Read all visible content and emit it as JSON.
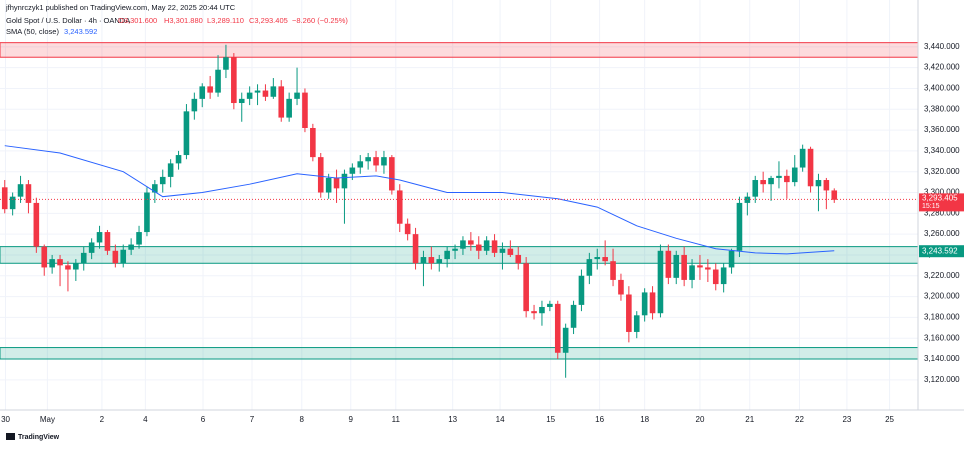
{
  "header": {
    "publisher": "jfhynrczyk1 published on TradingView.com, May 22, 2025 20:44 UTC",
    "symbol": "Gold Spot / U.S. Dollar · 4h · OANDA",
    "open": "O3,301.600",
    "high": "H3,301.880",
    "low": "L3,289.110",
    "close": "C3,293.405",
    "change": "−8.260 (−0.25%)",
    "indicator": "SMA (50, close)",
    "indicator_value": "3,243.592"
  },
  "footer": {
    "brand": "TradingView"
  },
  "chart_data": {
    "type": "candlestick",
    "colors": {
      "up": "#089981",
      "down": "#f23645"
    },
    "xlim": [
      -0.6,
      115.6
    ],
    "xticks": [
      {
        "value": 0.1,
        "label": "30"
      },
      {
        "value": 5.4,
        "label": "May"
      },
      {
        "value": 12.3,
        "label": "2"
      },
      {
        "value": 17.8,
        "label": "4"
      },
      {
        "value": 25.1,
        "label": "6"
      },
      {
        "value": 31.3,
        "label": "7"
      },
      {
        "value": 37.6,
        "label": "8"
      },
      {
        "value": 43.8,
        "label": "9"
      },
      {
        "value": 49.5,
        "label": "11"
      },
      {
        "value": 56.7,
        "label": "13"
      },
      {
        "value": 62.7,
        "label": "14"
      },
      {
        "value": 69.1,
        "label": "15"
      },
      {
        "value": 75.3,
        "label": "16"
      },
      {
        "value": 81,
        "label": "18"
      },
      {
        "value": 88,
        "label": "20"
      },
      {
        "value": 94.3,
        "label": "21"
      },
      {
        "value": 100.6,
        "label": "22"
      },
      {
        "value": 106.6,
        "label": "23"
      },
      {
        "value": 112,
        "label": "25"
      }
    ],
    "ylim": [
      3091,
      3485
    ],
    "yticks": [
      {
        "value": 3120,
        "label": "3,120.000"
      },
      {
        "value": 3140,
        "label": "3,140.000"
      },
      {
        "value": 3160,
        "label": "3,160.000"
      },
      {
        "value": 3180,
        "label": "3,180.000"
      },
      {
        "value": 3200,
        "label": "3,200.000"
      },
      {
        "value": 3220,
        "label": "3,220.000"
      },
      {
        "value": 3240,
        "label": "3,240.000"
      },
      {
        "value": 3260,
        "label": "3,260.000"
      },
      {
        "value": 3280,
        "label": "3,280.000"
      },
      {
        "value": 3300,
        "label": "3,300.000"
      },
      {
        "value": 3320,
        "label": "3,320.000"
      },
      {
        "value": 3340,
        "label": "3,340.000"
      },
      {
        "value": 3360,
        "label": "3,360.000"
      },
      {
        "value": 3380,
        "label": "3,380.000"
      },
      {
        "value": 3400,
        "label": "3,400.000"
      },
      {
        "value": 3420,
        "label": "3,420.000"
      },
      {
        "value": 3440,
        "label": "3,440.000"
      }
    ],
    "ohlc": [
      [
        3305,
        3312,
        3280,
        3284
      ],
      [
        3284,
        3300,
        3278,
        3296
      ],
      [
        3296,
        3316,
        3290,
        3308
      ],
      [
        3308,
        3312,
        3280,
        3290
      ],
      [
        3290,
        3295,
        3242,
        3248
      ],
      [
        3248,
        3250,
        3220,
        3228
      ],
      [
        3228,
        3240,
        3222,
        3236
      ],
      [
        3236,
        3240,
        3210,
        3230
      ],
      [
        3230,
        3234,
        3205,
        3226
      ],
      [
        3226,
        3236,
        3215,
        3232
      ],
      [
        3232,
        3248,
        3225,
        3242
      ],
      [
        3242,
        3256,
        3236,
        3252
      ],
      [
        3252,
        3268,
        3246,
        3262
      ],
      [
        3262,
        3264,
        3240,
        3244
      ],
      [
        3244,
        3250,
        3228,
        3232
      ],
      [
        3232,
        3250,
        3228,
        3245
      ],
      [
        3245,
        3256,
        3240,
        3250
      ],
      [
        3250,
        3268,
        3246,
        3262
      ],
      [
        3262,
        3305,
        3258,
        3300
      ],
      [
        3300,
        3312,
        3290,
        3308
      ],
      [
        3308,
        3322,
        3300,
        3315
      ],
      [
        3315,
        3332,
        3305,
        3328
      ],
      [
        3328,
        3340,
        3322,
        3336
      ],
      [
        3336,
        3385,
        3332,
        3378
      ],
      [
        3378,
        3396,
        3370,
        3390
      ],
      [
        3390,
        3405,
        3382,
        3402
      ],
      [
        3402,
        3412,
        3390,
        3396
      ],
      [
        3396,
        3432,
        3392,
        3418
      ],
      [
        3418,
        3442,
        3410,
        3430
      ],
      [
        3430,
        3434,
        3380,
        3386
      ],
      [
        3386,
        3396,
        3368,
        3390
      ],
      [
        3390,
        3402,
        3384,
        3396
      ],
      [
        3396,
        3404,
        3384,
        3398
      ],
      [
        3398,
        3404,
        3388,
        3392
      ],
      [
        3392,
        3410,
        3390,
        3402
      ],
      [
        3402,
        3408,
        3368,
        3372
      ],
      [
        3372,
        3396,
        3368,
        3390
      ],
      [
        3390,
        3420,
        3384,
        3396
      ],
      [
        3396,
        3400,
        3358,
        3362
      ],
      [
        3362,
        3366,
        3330,
        3334
      ],
      [
        3334,
        3338,
        3295,
        3300
      ],
      [
        3300,
        3318,
        3294,
        3314
      ],
      [
        3314,
        3322,
        3290,
        3304
      ],
      [
        3304,
        3322,
        3270,
        3318
      ],
      [
        3318,
        3328,
        3312,
        3324
      ],
      [
        3324,
        3336,
        3318,
        3330
      ],
      [
        3330,
        3338,
        3322,
        3334
      ],
      [
        3334,
        3340,
        3320,
        3326
      ],
      [
        3326,
        3340,
        3318,
        3334
      ],
      [
        3334,
        3336,
        3298,
        3302
      ],
      [
        3302,
        3308,
        3262,
        3270
      ],
      [
        3270,
        3275,
        3254,
        3260
      ],
      [
        3260,
        3266,
        3226,
        3232
      ],
      [
        3232,
        3244,
        3210,
        3238
      ],
      [
        3238,
        3248,
        3226,
        3232
      ],
      [
        3232,
        3240,
        3224,
        3236
      ],
      [
        3236,
        3248,
        3228,
        3244
      ],
      [
        3244,
        3250,
        3236,
        3246
      ],
      [
        3246,
        3258,
        3240,
        3254
      ],
      [
        3254,
        3262,
        3244,
        3250
      ],
      [
        3250,
        3258,
        3236,
        3244
      ],
      [
        3244,
        3258,
        3240,
        3254
      ],
      [
        3254,
        3260,
        3238,
        3242
      ],
      [
        3242,
        3252,
        3226,
        3246
      ],
      [
        3246,
        3254,
        3238,
        3240
      ],
      [
        3240,
        3248,
        3226,
        3232
      ],
      [
        3232,
        3238,
        3180,
        3186
      ],
      [
        3186,
        3192,
        3178,
        3184
      ],
      [
        3184,
        3196,
        3172,
        3190
      ],
      [
        3190,
        3196,
        3186,
        3193
      ],
      [
        3193,
        3196,
        3140,
        3146
      ],
      [
        3146,
        3174,
        3122,
        3170
      ],
      [
        3170,
        3196,
        3164,
        3192
      ],
      [
        3192,
        3226,
        3186,
        3220
      ],
      [
        3220,
        3242,
        3212,
        3236
      ],
      [
        3236,
        3246,
        3226,
        3238
      ],
      [
        3238,
        3254,
        3230,
        3234
      ],
      [
        3234,
        3246,
        3210,
        3216
      ],
      [
        3216,
        3222,
        3196,
        3202
      ],
      [
        3202,
        3210,
        3156,
        3166
      ],
      [
        3166,
        3186,
        3160,
        3182
      ],
      [
        3182,
        3208,
        3176,
        3204
      ],
      [
        3204,
        3210,
        3178,
        3184
      ],
      [
        3184,
        3250,
        3180,
        3244
      ],
      [
        3244,
        3250,
        3212,
        3218
      ],
      [
        3218,
        3244,
        3212,
        3240
      ],
      [
        3240,
        3248,
        3210,
        3216
      ],
      [
        3216,
        3236,
        3208,
        3230
      ],
      [
        3230,
        3240,
        3216,
        3228
      ],
      [
        3228,
        3236,
        3214,
        3226
      ],
      [
        3226,
        3232,
        3206,
        3212
      ],
      [
        3212,
        3232,
        3204,
        3228
      ],
      [
        3228,
        3246,
        3222,
        3244
      ],
      [
        3244,
        3296,
        3238,
        3290
      ],
      [
        3290,
        3300,
        3278,
        3296
      ],
      [
        3296,
        3316,
        3290,
        3312
      ],
      [
        3312,
        3320,
        3300,
        3308
      ],
      [
        3308,
        3316,
        3292,
        3314
      ],
      [
        3314,
        3330,
        3304,
        3316
      ],
      [
        3316,
        3322,
        3294,
        3310
      ],
      [
        3310,
        3336,
        3306,
        3324
      ],
      [
        3324,
        3346,
        3320,
        3342
      ],
      [
        3342,
        3344,
        3300,
        3306
      ],
      [
        3306,
        3318,
        3282,
        3312
      ],
      [
        3312,
        3314,
        3284,
        3302
      ],
      [
        3302,
        3304,
        3290,
        3293
      ]
    ],
    "sma": {
      "color": "#2962ff",
      "x": [
        0,
        7,
        15,
        20,
        25,
        31,
        37,
        42,
        47,
        50,
        54,
        56,
        63,
        70,
        75,
        80,
        85,
        90,
        95,
        99,
        105
      ],
      "values": [
        3345,
        3338,
        3320,
        3296,
        3300,
        3308,
        3318,
        3314,
        3316,
        3312,
        3304,
        3300,
        3300,
        3294,
        3286,
        3268,
        3256,
        3246,
        3242,
        3241,
        3244
      ],
      "last": {
        "value": 3243.592,
        "label": "3,243.592"
      }
    },
    "last_price": {
      "value": 3293.405,
      "label": "3,293.405",
      "countdown": "15:15"
    },
    "zones": [
      {
        "from": 3430,
        "to": 3444,
        "color": "#f23645"
      },
      {
        "from": 3232,
        "to": 3248,
        "color": "#089981"
      },
      {
        "from": 3140,
        "to": 3151,
        "color": "#089981"
      }
    ]
  }
}
